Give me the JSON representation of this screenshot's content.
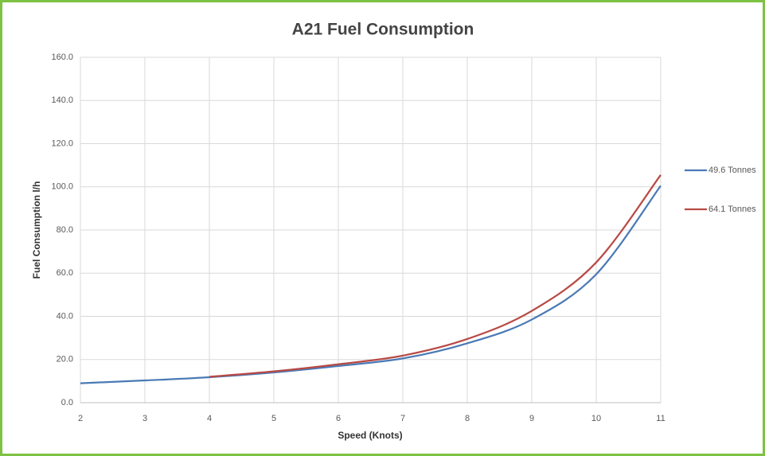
{
  "chart_data": {
    "type": "line",
    "title": "A21 Fuel Consumption",
    "x_label": "Speed (Knots)",
    "y_label": "Fuel Consumption l/h",
    "x": [
      2,
      3,
      4,
      5,
      6,
      7,
      8,
      9,
      10,
      11
    ],
    "series": [
      {
        "name": "49.6 Tonnes",
        "color": "#4a7ab5",
        "values": [
          9,
          10.3,
          11.8,
          14,
          17,
          20.5,
          27.5,
          38.5,
          59.5,
          100.5
        ]
      },
      {
        "name": "64.1 Tonnes",
        "color": "#b84a45",
        "values": [
          null,
          null,
          12,
          14.5,
          17.8,
          21.8,
          29.5,
          42.5,
          65,
          105.5
        ]
      }
    ],
    "xlim": [
      2,
      11
    ],
    "xticks": [
      2,
      3,
      4,
      5,
      6,
      7,
      8,
      9,
      10,
      11
    ],
    "ylim": [
      0,
      160
    ],
    "yticks": [
      {
        "value": 0,
        "label": "0.0"
      },
      {
        "value": 20,
        "label": "20.0"
      },
      {
        "value": 40,
        "label": "40.0"
      },
      {
        "value": 60,
        "label": "60.0"
      },
      {
        "value": 80,
        "label": "80.0"
      },
      {
        "value": 100,
        "label": "100.0"
      },
      {
        "value": 120,
        "label": "120.0"
      },
      {
        "value": 140,
        "label": "140.0"
      },
      {
        "value": 160,
        "label": "160.0"
      }
    ],
    "grid": true,
    "legend": "right"
  }
}
